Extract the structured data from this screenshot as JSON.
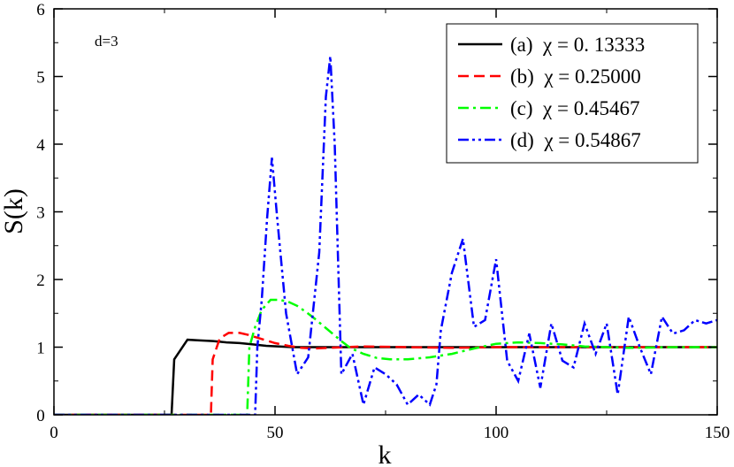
{
  "chart_data": {
    "type": "line",
    "xlabel": "k",
    "ylabel": "S(k)",
    "annotation": "d=3",
    "xlim": [
      0,
      150
    ],
    "ylim": [
      0,
      6
    ],
    "x_ticks": [
      "0",
      "50",
      "100",
      "150"
    ],
    "y_ticks": [
      "0",
      "1",
      "2",
      "3",
      "4",
      "5",
      "6"
    ],
    "legend_position": "top-right",
    "series": [
      {
        "name": "(a)  χ = 0. 13333",
        "color": "#000000",
        "dash": "solid",
        "x": [
          0,
          26.6,
          27.2,
          30.2,
          33,
          36,
          39,
          42,
          45,
          48,
          51,
          54,
          57,
          60,
          63,
          70,
          80,
          90,
          100,
          110,
          120,
          130,
          140,
          150
        ],
        "y": [
          0,
          0,
          0.82,
          1.11,
          1.1,
          1.09,
          1.07,
          1.06,
          1.04,
          1.02,
          1.01,
          1.0,
          1.0,
          1.0,
          1.0,
          1.0,
          1.0,
          1.0,
          1.0,
          1.0,
          1.0,
          1.0,
          1.0,
          1.0
        ]
      },
      {
        "name": "(b)  χ = 0.25000",
        "color": "#ff0000",
        "dash": "dash",
        "x": [
          0,
          35.5,
          35.9,
          37.5,
          39.5,
          42,
          44,
          47,
          50,
          53,
          56,
          59,
          62,
          66,
          70,
          80,
          90,
          100,
          110,
          120,
          130,
          140,
          150
        ],
        "y": [
          0,
          0,
          0.82,
          1.13,
          1.21,
          1.21,
          1.18,
          1.12,
          1.06,
          1.02,
          0.99,
          0.98,
          0.99,
          1.0,
          1.01,
          1.0,
          0.99,
          1.0,
          1.0,
          1.0,
          1.0,
          1.0,
          1.0
        ]
      },
      {
        "name": "(c)  χ = 0.45467",
        "color": "#00ff00",
        "dash": "dashdot",
        "x": [
          0,
          43.7,
          44.2,
          45.5,
          47,
          49,
          51,
          53,
          55,
          57,
          59,
          61,
          63,
          65,
          67,
          70,
          73,
          76,
          80,
          85,
          90,
          95,
          100,
          105,
          110,
          115,
          120,
          130,
          140,
          150
        ],
        "y": [
          0,
          0,
          1.0,
          1.3,
          1.55,
          1.7,
          1.7,
          1.67,
          1.61,
          1.52,
          1.42,
          1.31,
          1.2,
          1.09,
          0.99,
          0.9,
          0.84,
          0.82,
          0.82,
          0.85,
          0.9,
          0.98,
          1.05,
          1.07,
          1.06,
          1.04,
          1.01,
          0.99,
          1.0,
          1.0
        ]
      },
      {
        "name": "(d)  χ = 0.54867",
        "color": "#0000ff",
        "dash": "dashdotdot",
        "x": [
          0,
          45.5,
          46.0,
          47.0,
          48.2,
          49.3,
          50.5,
          52.5,
          55,
          57.5,
          60,
          61.5,
          62.5,
          63.5,
          65,
          67.5,
          70,
          72.5,
          75,
          77.5,
          80,
          82.5,
          85,
          86.5,
          87.5,
          90,
          92.5,
          95,
          97.5,
          100,
          102.5,
          105,
          107.5,
          110,
          112.5,
          115,
          117.5,
          120,
          122.5,
          125,
          127.5,
          130,
          132.5,
          135,
          137.5,
          140,
          142.5,
          145,
          147.5,
          150
        ],
        "y": [
          0,
          0,
          1.0,
          1.7,
          2.9,
          3.8,
          2.9,
          1.5,
          0.6,
          0.85,
          2.4,
          4.7,
          5.3,
          4.0,
          0.6,
          0.9,
          0.15,
          0.7,
          0.6,
          0.45,
          0.15,
          0.3,
          0.15,
          0.45,
          1.25,
          2.1,
          2.6,
          1.3,
          1.4,
          2.3,
          0.8,
          0.5,
          1.2,
          0.4,
          1.35,
          0.8,
          0.7,
          1.35,
          0.9,
          1.35,
          0.3,
          1.45,
          1.0,
          0.6,
          1.45,
          1.2,
          1.25,
          1.4,
          1.35,
          1.4
        ]
      }
    ]
  }
}
